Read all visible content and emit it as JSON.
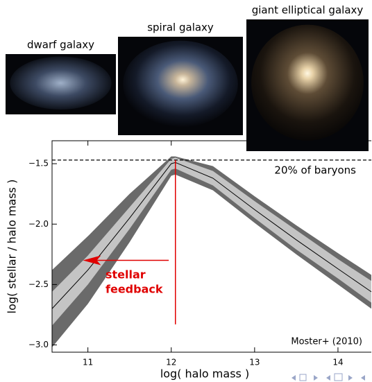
{
  "chart_data": {
    "type": "band-line",
    "xlabel": "log( halo mass )",
    "ylabel": "log( stellar / halo mass )",
    "xlim": [
      10.57,
      14.4
    ],
    "ylim": [
      -3.06,
      -1.31
    ],
    "xticks": [
      11,
      12,
      13,
      14
    ],
    "yticks": [
      {
        "value": -1.5,
        "label": "−1.5"
      },
      {
        "value": -2.0,
        "label": "−2.0"
      },
      {
        "value": -2.5,
        "label": "−2.5"
      },
      {
        "value": -3.0,
        "label": "−3.0"
      }
    ],
    "x": [
      10.57,
      11,
      11.5,
      12,
      12.05,
      12.5,
      13,
      13.5,
      14,
      14.4
    ],
    "bands": [
      {
        "color": "#6a6a6a",
        "upper": [
          -2.38,
          -2.1,
          -1.75,
          -1.44,
          -1.44,
          -1.52,
          -1.77,
          -2.01,
          -2.24,
          -2.42
        ],
        "lower": [
          -3.02,
          -2.66,
          -2.15,
          -1.6,
          -1.59,
          -1.72,
          -1.99,
          -2.25,
          -2.5,
          -2.7
        ]
      },
      {
        "color": "#c4c4c4",
        "upper": [
          -2.56,
          -2.26,
          -1.86,
          -1.46,
          -1.45,
          -1.56,
          -1.81,
          -2.05,
          -2.29,
          -2.47
        ],
        "lower": [
          -2.84,
          -2.5,
          -2.04,
          -1.55,
          -1.54,
          -1.68,
          -1.95,
          -2.21,
          -2.45,
          -2.65
        ]
      }
    ],
    "line": {
      "color": "#000000",
      "values": [
        -2.7,
        -2.38,
        -1.95,
        -1.5,
        -1.49,
        -1.62,
        -1.88,
        -2.13,
        -2.37,
        -2.56
      ]
    },
    "hline": {
      "value": -1.47,
      "label": "20% of baryons"
    },
    "vline": {
      "x": 12.05,
      "ymax": -1.47,
      "ymin": -2.83,
      "color": "#e00000"
    },
    "arrow": {
      "text_lines": [
        "stellar",
        "feedback"
      ],
      "color": "#e00000",
      "from": [
        11.97,
        -2.3
      ],
      "to": [
        10.94,
        -2.3
      ]
    },
    "credit": "Moster+ (2010)"
  },
  "galaxies": [
    "dwarf galaxy",
    "spiral galaxy",
    "giant elliptical galaxy"
  ]
}
